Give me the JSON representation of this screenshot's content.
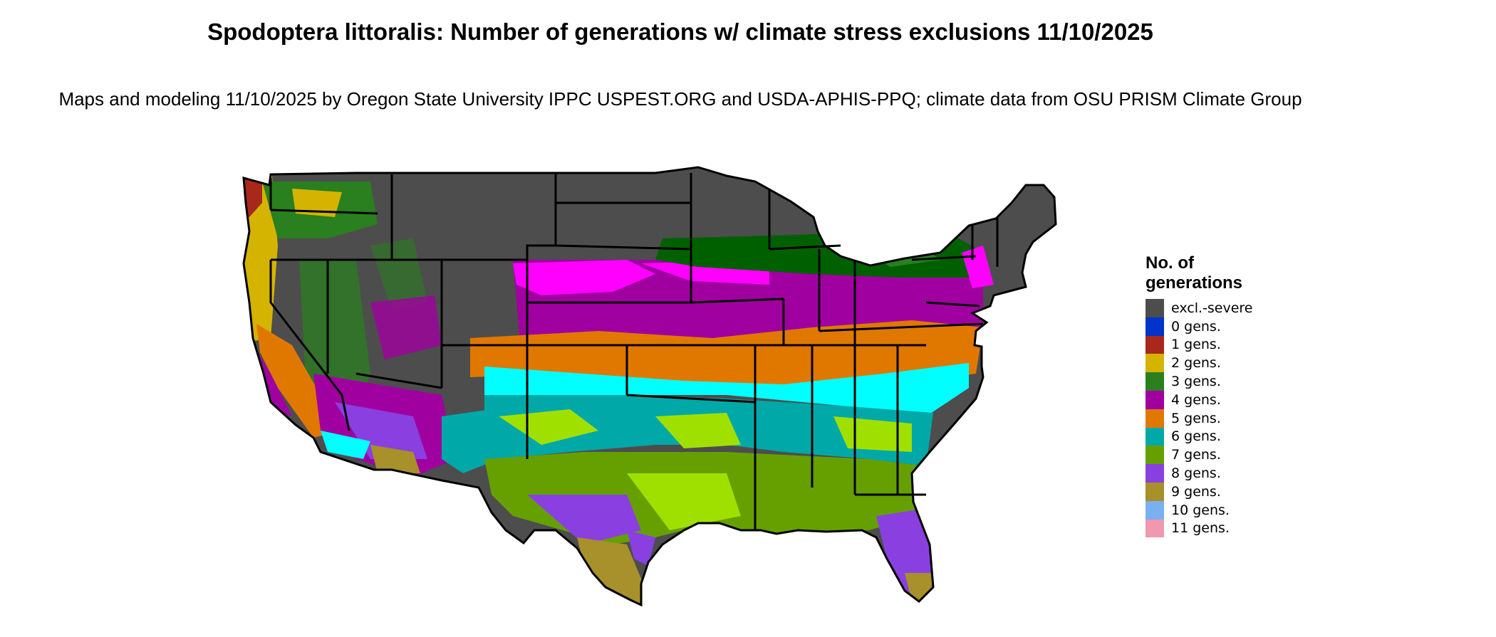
{
  "title": "Spodoptera littoralis: Number of generations w/ climate stress exclusions 11/10/2025",
  "subtitle": "Maps and modeling 11/10/2025 by Oregon State University IPPC USPEST.ORG and USDA-APHIS-PPQ; climate data from OSU PRISM Climate Group",
  "legend": {
    "title": "No. of generations",
    "items": [
      {
        "label": "excl.-severe",
        "color": "#4d4d4d"
      },
      {
        "label": "0 gens.",
        "color": "#0033cc"
      },
      {
        "label": "1 gens.",
        "color": "#a8281c"
      },
      {
        "label": "2 gens.",
        "color": "#d4b400"
      },
      {
        "label": "3 gens.",
        "color": "#2a7f1f"
      },
      {
        "label": "4 gens.",
        "color": "#a000a0"
      },
      {
        "label": "5 gens.",
        "color": "#e07800"
      },
      {
        "label": "6 gens.",
        "color": "#00a8a8"
      },
      {
        "label": "7 gens.",
        "color": "#66a000"
      },
      {
        "label": "8 gens.",
        "color": "#8a40e0"
      },
      {
        "label": "9 gens.",
        "color": "#a8902a"
      },
      {
        "label": "10 gens.",
        "color": "#7ab0f0"
      },
      {
        "label": "11 gens.",
        "color": "#f098b0"
      }
    ]
  },
  "map_colors": {
    "excl": "#4d4d4d",
    "magenta": "#ff00ff",
    "purple": "#a000a0",
    "orange": "#e07800",
    "cyan": "#00ffff",
    "teal": "#00a8a8",
    "lime": "#a0e000",
    "green7": "#66a000",
    "green3": "#2a7f1f",
    "darkgreen": "#006000",
    "violet": "#8a40e0",
    "gold": "#a8902a",
    "yellow": "#d4b400",
    "darkred": "#a8281c",
    "border": "#000000"
  }
}
